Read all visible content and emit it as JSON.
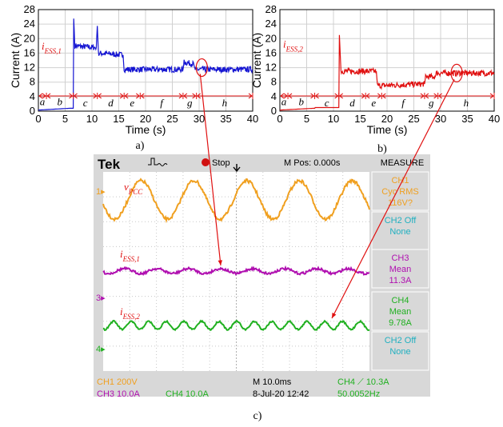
{
  "captions": {
    "a": "a)",
    "b": "b)",
    "c": "c)"
  },
  "colors": {
    "ess1": "#1414d2",
    "ess2": "#e01010",
    "annot": "#e01010",
    "ch1": "#f0a020",
    "ch3": "#b010b0",
    "ch4": "#20b020",
    "ch2": "#20b0c0"
  },
  "chart_data": [
    {
      "type": "line",
      "xlabel": "Time (s)",
      "ylabel": "Current (A)",
      "xlim": [
        0,
        40
      ],
      "ylim": [
        0,
        28
      ],
      "xticks": [
        "0",
        "5",
        "10",
        "15",
        "20",
        "25",
        "30",
        "35",
        "40"
      ],
      "yticks": [
        "0",
        "4",
        "8",
        "12",
        "16",
        "20",
        "24",
        "28"
      ],
      "grid": true,
      "series": [
        {
          "name": "i_ESS,1",
          "label_main": "i",
          "label_sub": "ESS,1",
          "color": "#1414d2",
          "points": [
            [
              0,
              0.3
            ],
            [
              6,
              0.8
            ],
            [
              6.5,
              0.8
            ],
            [
              6.6,
              25.5
            ],
            [
              6.8,
              18
            ],
            [
              10.8,
              17.5
            ],
            [
              11,
              23.5
            ],
            [
              11.2,
              16
            ],
            [
              15.8,
              15.5
            ],
            [
              16,
              11.5
            ],
            [
              27,
              11.5
            ],
            [
              27.2,
              13.5
            ],
            [
              29,
              13
            ],
            [
              29.2,
              11.5
            ],
            [
              40,
              11.5
            ]
          ],
          "noise": 0.8
        }
      ],
      "segments": [
        "a",
        "b",
        "c",
        "d",
        "e",
        "f",
        "g",
        "h"
      ],
      "segment_bounds": [
        0,
        1.5,
        6.5,
        11,
        16,
        19,
        27,
        29.5,
        40
      ]
    },
    {
      "type": "line",
      "xlabel": "Time (s)",
      "ylabel": "Current (A)",
      "xlim": [
        0,
        40
      ],
      "ylim": [
        0,
        28
      ],
      "xticks": [
        "0",
        "5",
        "10",
        "15",
        "20",
        "25",
        "30",
        "35",
        "40"
      ],
      "yticks": [
        "0",
        "4",
        "8",
        "12",
        "16",
        "20",
        "24",
        "28"
      ],
      "grid": true,
      "series": [
        {
          "name": "i_ESS,2",
          "label_main": "i",
          "label_sub": "ESS,2",
          "color": "#e01010",
          "points": [
            [
              0,
              0.3
            ],
            [
              6.5,
              0.8
            ],
            [
              6.6,
              1
            ],
            [
              11,
              1
            ],
            [
              11.1,
              21
            ],
            [
              11.4,
              11
            ],
            [
              18,
              11
            ],
            [
              18.2,
              7
            ],
            [
              27,
              7.5
            ],
            [
              27.2,
              9.5
            ],
            [
              29,
              9.5
            ],
            [
              29.2,
              10.5
            ],
            [
              40,
              10.5
            ]
          ],
          "noise": 0.8
        }
      ],
      "segments": [
        "a",
        "b",
        "c",
        "d",
        "e",
        "f",
        "g",
        "h"
      ],
      "segment_bounds": [
        0,
        1.5,
        6.5,
        11,
        16,
        19,
        27,
        29.5,
        40
      ]
    }
  ],
  "scope": {
    "brand": "Tek",
    "trigger_label": "Stop",
    "mpos": "M Pos: 0.000s",
    "measure_title": "MEASURE",
    "waves": {
      "vpcc": {
        "main": "v",
        "sub": "PCC"
      },
      "ess1": {
        "main": "i",
        "sub": "ESS,1"
      },
      "ess2": {
        "main": "i",
        "sub": "ESS,2"
      }
    },
    "channel_markers": [
      "1",
      "3",
      "4"
    ],
    "measurements": [
      {
        "line1": "CH1",
        "line2": "Cyc RMS",
        "line3": "116V?",
        "color": "#f0a020"
      },
      {
        "line1": "CH2 Off",
        "line2": "None",
        "line3": "",
        "color": "#20b0c0"
      },
      {
        "line1": "CH3",
        "line2": "Mean",
        "line3": "11.3A",
        "color": "#b010b0"
      },
      {
        "line1": "CH4",
        "line2": "Mean",
        "line3": "9.78A",
        "color": "#20b020"
      },
      {
        "line1": "CH2 Off",
        "line2": "None",
        "line3": "",
        "color": "#20b0c0"
      }
    ],
    "footer": {
      "ch1": "CH1  200V",
      "timebase": "M 10.0ms",
      "trig": "CH4 ⟋ 10.3A",
      "ch3": "CH3  10.0A",
      "ch4": "CH4  10.0A",
      "date": "8-Jul-20 12:42",
      "freq": "50.0052Hz"
    }
  }
}
